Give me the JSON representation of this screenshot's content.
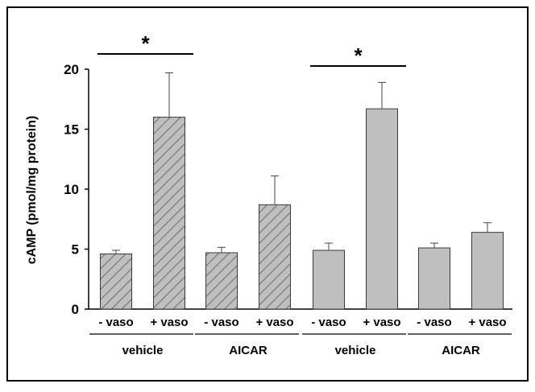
{
  "chart_data": {
    "type": "bar",
    "title": "",
    "xlabel": "",
    "ylabel": "cAMP (pmol/mg protein)",
    "ylim": [
      0,
      20
    ],
    "yticks": [
      0,
      5,
      10,
      15,
      20
    ],
    "grid": false,
    "categories": [
      "- vaso",
      "+ vaso",
      "- vaso",
      "+ vaso",
      "- vaso",
      "+ vaso",
      "- vaso",
      "+ vaso"
    ],
    "values": [
      4.6,
      16.0,
      4.7,
      8.7,
      4.9,
      16.7,
      5.1,
      6.4
    ],
    "errors": [
      0.3,
      3.7,
      0.45,
      2.4,
      0.6,
      2.2,
      0.4,
      0.8
    ],
    "bar_styles": [
      "hatched",
      "hatched",
      "hatched",
      "hatched",
      "solid",
      "solid",
      "solid",
      "solid"
    ],
    "groups": [
      {
        "label": "vehicle",
        "bars": [
          0,
          1
        ]
      },
      {
        "label": "AICAR",
        "bars": [
          2,
          3
        ]
      },
      {
        "label": "vehicle",
        "bars": [
          4,
          5
        ]
      },
      {
        "label": "AICAR",
        "bars": [
          6,
          7
        ]
      }
    ],
    "annotations": [
      {
        "text": "*",
        "bars": [
          0,
          1
        ]
      },
      {
        "text": "*",
        "bars": [
          4,
          5
        ]
      }
    ],
    "colors": {
      "hatched_fill": "#bfbfbf",
      "hatch_line": "#555555",
      "solid_fill": "#bfbfbf",
      "bar_outline": "#000000"
    }
  }
}
